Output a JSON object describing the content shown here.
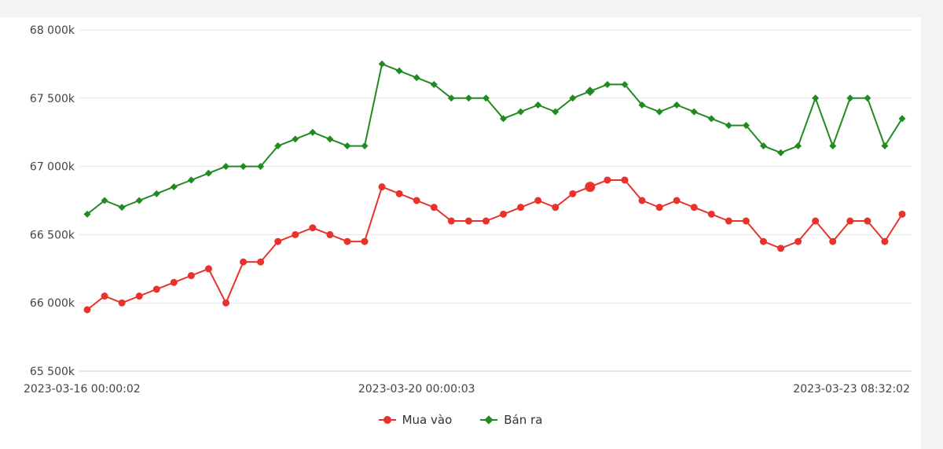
{
  "chart_data": {
    "type": "line",
    "x_tick_labels": [
      "2023-03-16 00:00:02",
      "2023-03-20 00:00:03",
      "2023-03-23 08:32:02"
    ],
    "x_tick_label_indices": [
      0,
      19,
      47
    ],
    "y_tick_labels": [
      "65 500k",
      "66 000k",
      "66 500k",
      "67 000k",
      "67 500k",
      "68 000k"
    ],
    "y_ticks": [
      65500,
      66000,
      66500,
      67000,
      67500,
      68000
    ],
    "ylim": [
      65500,
      68000
    ],
    "grid": true,
    "legend_position": "bottom-center",
    "highlighted_index": 29,
    "series": [
      {
        "name": "Mua vào",
        "color": "#e8322b",
        "marker": "circle",
        "values": [
          65950,
          66050,
          66000,
          66050,
          66100,
          66150,
          66200,
          66250,
          66000,
          66300,
          66300,
          66450,
          66500,
          66550,
          66500,
          66450,
          66450,
          66850,
          66800,
          66750,
          66700,
          66600,
          66600,
          66600,
          66650,
          66700,
          66750,
          66700,
          66800,
          66850,
          66900,
          66900,
          66750,
          66700,
          66750,
          66700,
          66650,
          66600,
          66600,
          66450,
          66400,
          66450,
          66600,
          66450,
          66600,
          66600,
          66450,
          66650
        ]
      },
      {
        "name": "Bán ra",
        "color": "#218a21",
        "marker": "diamond",
        "values": [
          66650,
          66750,
          66700,
          66750,
          66800,
          66850,
          66900,
          66950,
          67000,
          67000,
          67000,
          67150,
          67200,
          67250,
          67200,
          67150,
          67150,
          67750,
          67700,
          67650,
          67600,
          67500,
          67500,
          67500,
          67350,
          67400,
          67450,
          67400,
          67500,
          67550,
          67600,
          67600,
          67450,
          67400,
          67450,
          67400,
          67350,
          67300,
          67300,
          67150,
          67100,
          67150,
          67500,
          67150,
          67500,
          67500,
          67150,
          67350
        ]
      }
    ]
  }
}
